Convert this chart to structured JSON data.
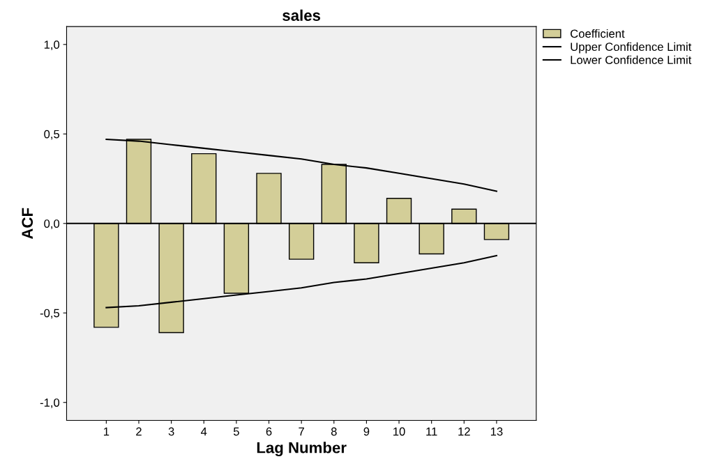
{
  "chart_data": {
    "type": "bar",
    "title": "sales",
    "xlabel": "Lag Number",
    "ylabel": "ACF",
    "categories": [
      "1",
      "2",
      "3",
      "4",
      "5",
      "6",
      "7",
      "8",
      "9",
      "10",
      "11",
      "12",
      "13"
    ],
    "series": [
      {
        "name": "Coefficient",
        "color": "#d3ce98",
        "values": [
          -0.58,
          0.47,
          -0.61,
          0.39,
          -0.39,
          0.28,
          -0.2,
          0.33,
          -0.22,
          0.14,
          -0.17,
          0.08,
          -0.09
        ]
      },
      {
        "name": "Upper Confidence Limit",
        "type": "line",
        "color": "#000000",
        "values": [
          0.47,
          0.46,
          0.44,
          0.42,
          0.4,
          0.38,
          0.36,
          0.33,
          0.31,
          0.28,
          0.25,
          0.22,
          0.18
        ]
      },
      {
        "name": "Lower Confidence Limit",
        "type": "line",
        "color": "#000000",
        "values": [
          -0.47,
          -0.46,
          -0.44,
          -0.42,
          -0.4,
          -0.38,
          -0.36,
          -0.33,
          -0.31,
          -0.28,
          -0.25,
          -0.22,
          -0.18
        ]
      }
    ],
    "ylim": [
      -1.1,
      1.1
    ],
    "yticks": [
      {
        "value": -1.0,
        "label": "-1,0"
      },
      {
        "value": -0.5,
        "label": "-0,5"
      },
      {
        "value": 0.0,
        "label": "0,0"
      },
      {
        "value": 0.5,
        "label": "0,5"
      },
      {
        "value": 1.0,
        "label": "1,0"
      }
    ],
    "ref_lines": [
      {
        "axis": "y",
        "value": 0.0,
        "color": "#000000"
      }
    ],
    "legend": "top right",
    "grid": false,
    "marker": "none"
  }
}
